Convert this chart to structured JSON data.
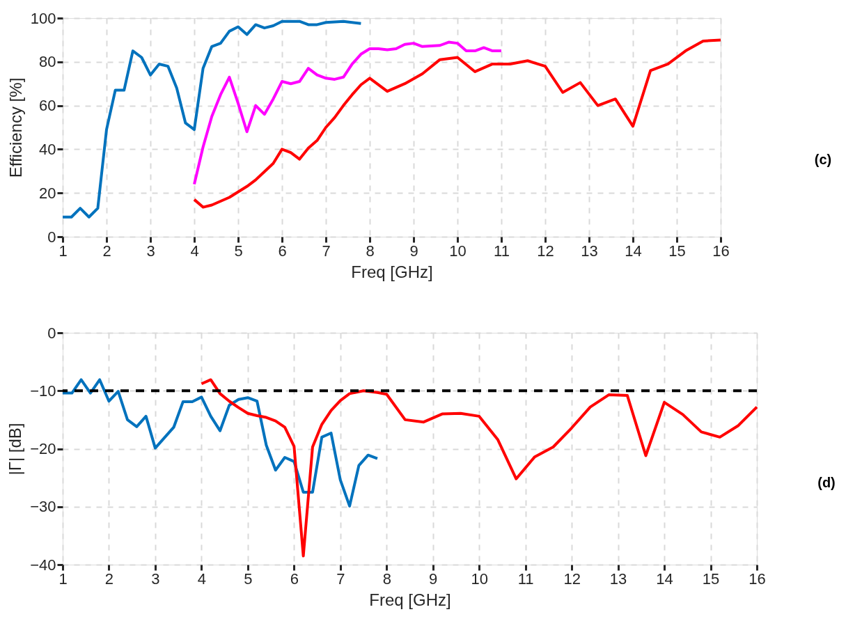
{
  "chart_data": [
    {
      "type": "line",
      "xlabel": "Freq [GHz]",
      "ylabel": "Efficiency [%]",
      "xlim": [
        1,
        16
      ],
      "ylim": [
        0,
        100
      ],
      "xticks": [
        1,
        2,
        3,
        4,
        5,
        6,
        7,
        8,
        9,
        10,
        11,
        12,
        13,
        14,
        15,
        16
      ],
      "yticks": [
        0,
        20,
        40,
        60,
        80,
        100
      ],
      "grid": true,
      "annotations": [
        "(c)"
      ],
      "series": [
        {
          "color": "#0072bd",
          "x": [
            1,
            1.2,
            1.4,
            1.6,
            1.8,
            2,
            2.2,
            2.4,
            2.6,
            2.8,
            3,
            3.2,
            3.4,
            3.6,
            3.8,
            4,
            4.2,
            4.4,
            4.6,
            4.8,
            5,
            5.2,
            5.4,
            5.6,
            5.8,
            6,
            6.2,
            6.4,
            6.6,
            6.8,
            7,
            7.4,
            7.8
          ],
          "values": [
            9,
            9,
            13,
            9,
            13,
            49,
            67,
            67,
            85,
            82,
            74,
            79,
            78,
            68,
            52,
            49,
            77,
            87,
            88.5,
            94,
            96,
            92.5,
            97,
            95.5,
            96.5,
            98.5,
            98.5,
            98.5,
            97,
            97,
            98,
            98.5,
            97.5
          ]
        },
        {
          "color": "#ff00ff",
          "x": [
            4,
            4.2,
            4.4,
            4.6,
            4.8,
            5,
            5.2,
            5.4,
            5.6,
            5.8,
            6,
            6.2,
            6.4,
            6.6,
            6.8,
            7,
            7.2,
            7.4,
            7.6,
            7.8,
            8,
            8.2,
            8.4,
            8.6,
            8.8,
            9,
            9.2,
            9.6,
            9.8,
            10,
            10.2,
            10.4,
            10.6,
            10.8,
            11
          ],
          "values": [
            24,
            41,
            55,
            65,
            73,
            61,
            48,
            60,
            56,
            63,
            71,
            70,
            71,
            77,
            74,
            72.5,
            72,
            73,
            79,
            83.5,
            86,
            86,
            85.5,
            86,
            88,
            88.5,
            87,
            87.5,
            89,
            88.5,
            85,
            85,
            86.5,
            85,
            85
          ]
        },
        {
          "color": "#ff0000",
          "x": [
            4,
            4.2,
            4.4,
            4.8,
            5.2,
            5.4,
            5.8,
            6,
            6.2,
            6.4,
            6.6,
            6.8,
            7,
            7.2,
            7.4,
            7.6,
            7.8,
            8,
            8.4,
            8.8,
            9.2,
            9.6,
            10,
            10.4,
            10.8,
            11.2,
            11.6,
            12,
            12.4,
            12.8,
            13.2,
            13.6,
            14,
            14.4,
            14.8,
            15.2,
            15.6,
            16
          ],
          "values": [
            17,
            13.5,
            14.5,
            18,
            23,
            26,
            33.5,
            40,
            38.5,
            35.5,
            40.5,
            44,
            50,
            54.5,
            60,
            65,
            69.5,
            72.5,
            66.5,
            70,
            74.5,
            81,
            82,
            75.5,
            79,
            79,
            80.5,
            78,
            66,
            70.5,
            60,
            63,
            50.5,
            76,
            79,
            85,
            89.5,
            90
          ]
        }
      ]
    },
    {
      "type": "line",
      "xlabel": "Freq [GHz]",
      "ylabel": "|Γ| [dB]",
      "xlim": [
        1,
        16
      ],
      "ylim": [
        -40,
        0
      ],
      "xticks": [
        1,
        2,
        3,
        4,
        5,
        6,
        7,
        8,
        9,
        10,
        11,
        12,
        13,
        14,
        15,
        16
      ],
      "yticks": [
        -40,
        -30,
        -20,
        -10,
        0
      ],
      "grid": true,
      "annotations": [
        "(d)"
      ],
      "ref_lines": [
        {
          "axis": "y",
          "value": -10,
          "color": "#000000",
          "line_style": "dashed"
        }
      ],
      "series": [
        {
          "color": "#0072bd",
          "x": [
            1,
            1.2,
            1.4,
            1.6,
            1.8,
            2,
            2.2,
            2.4,
            2.6,
            2.8,
            3,
            3.2,
            3.4,
            3.6,
            3.8,
            4,
            4.2,
            4.4,
            4.6,
            4.8,
            5,
            5.2,
            5.4,
            5.6,
            5.8,
            6,
            6.2,
            6.4,
            6.6,
            6.8,
            7,
            7.2,
            7.4,
            7.6,
            7.8
          ],
          "values": [
            -10.4,
            -10.4,
            -8.1,
            -10.4,
            -8.1,
            -11.8,
            -10.1,
            -15,
            -16.2,
            -14.4,
            -19.9,
            -18.1,
            -16.3,
            -11.9,
            -11.9,
            -11.1,
            -14.4,
            -16.9,
            -12.5,
            -11.5,
            -11.2,
            -11.8,
            -19.4,
            -23.7,
            -21.5,
            -22.2,
            -27.5,
            -27.5,
            -18,
            -17.3,
            -25.4,
            -29.9,
            -22.9,
            -21.1,
            -21.7
          ]
        },
        {
          "color": "#ff0000",
          "x": [
            4,
            4.2,
            4.4,
            4.6,
            4.8,
            5,
            5.2,
            5.4,
            5.6,
            5.8,
            6,
            6.2,
            6.4,
            6.6,
            6.8,
            7,
            7.2,
            7.5,
            7.8,
            8,
            8.4,
            8.8,
            9.2,
            9.6,
            10,
            10.4,
            10.8,
            11.2,
            11.6,
            12,
            12.4,
            12.8,
            13.2,
            13.6,
            14,
            14.4,
            14.8,
            15.2,
            15.6,
            16
          ],
          "values": [
            -8.8,
            -8.1,
            -10.5,
            -11.8,
            -12.9,
            -13.9,
            -14.3,
            -14.6,
            -15.2,
            -16.3,
            -19.6,
            -38.5,
            -19.7,
            -15.8,
            -13.4,
            -11.7,
            -10.5,
            -10,
            -10.3,
            -10.6,
            -15,
            -15.4,
            -14,
            -13.9,
            -14.4,
            -18.4,
            -25.2,
            -21.4,
            -19.7,
            -16.4,
            -12.8,
            -10.7,
            -10.8,
            -21.2,
            -12,
            -14.1,
            -17.1,
            -18,
            -16,
            -12.8
          ]
        }
      ]
    }
  ]
}
